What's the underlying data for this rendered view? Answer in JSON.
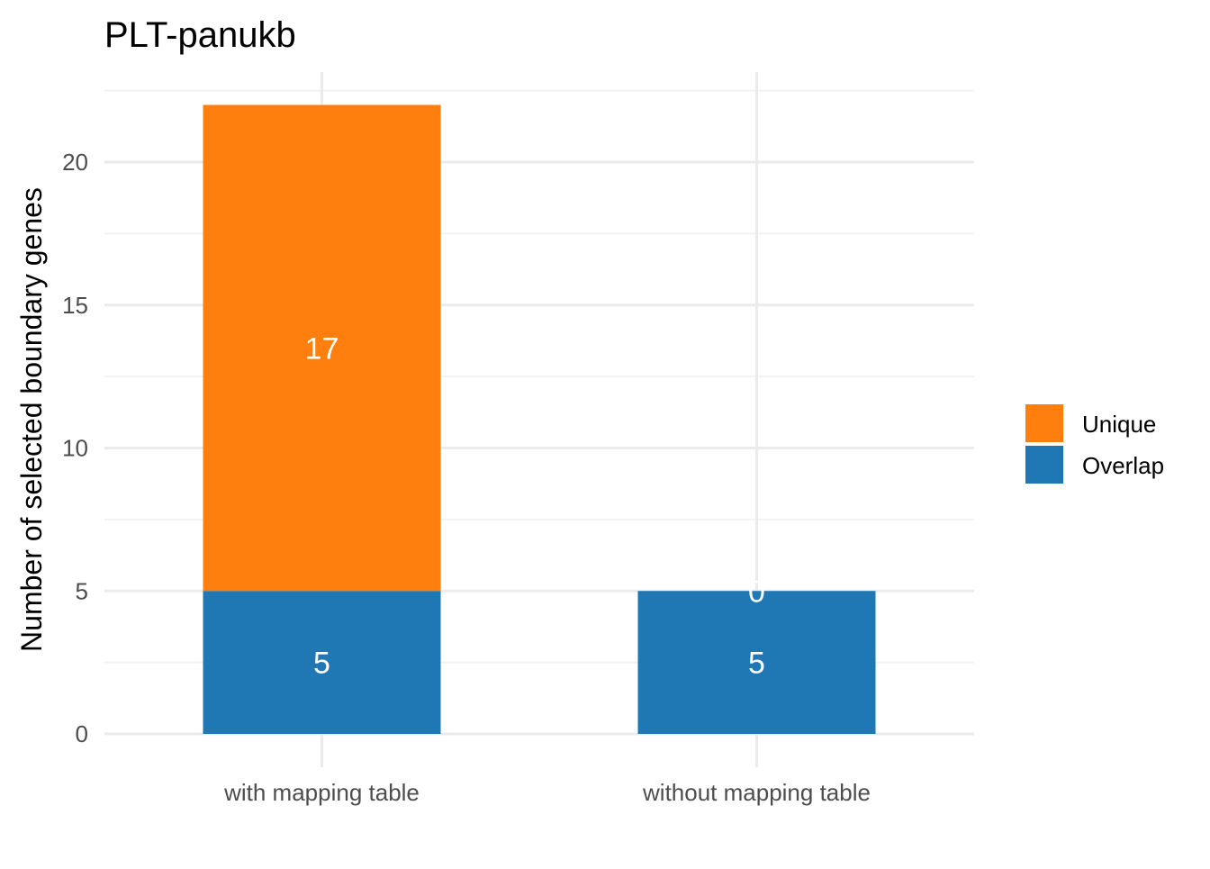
{
  "chart_data": {
    "type": "bar",
    "stacked": true,
    "title": "PLT-panukb",
    "xlabel": "",
    "ylabel": "Number of selected boundary genes",
    "categories": [
      "with mapping table",
      "without mapping table"
    ],
    "series": [
      {
        "name": "Overlap",
        "values": [
          5,
          5
        ],
        "color": "#1f77b4",
        "labels": [
          "5",
          "5"
        ]
      },
      {
        "name": "Unique",
        "values": [
          17,
          0
        ],
        "color": "#ff7f0e",
        "labels": [
          "17",
          "0"
        ]
      }
    ],
    "legend": {
      "position": "right",
      "entries": [
        {
          "label": "Unique",
          "color": "#ff7f0e"
        },
        {
          "label": "Overlap",
          "color": "#1f77b4"
        }
      ]
    },
    "ylim": [
      0,
      23
    ],
    "y_ticks": [
      0,
      5,
      10,
      15,
      20
    ],
    "y_tick_labels": [
      "0",
      "5",
      "10",
      "15",
      "20"
    ],
    "grid": true
  }
}
